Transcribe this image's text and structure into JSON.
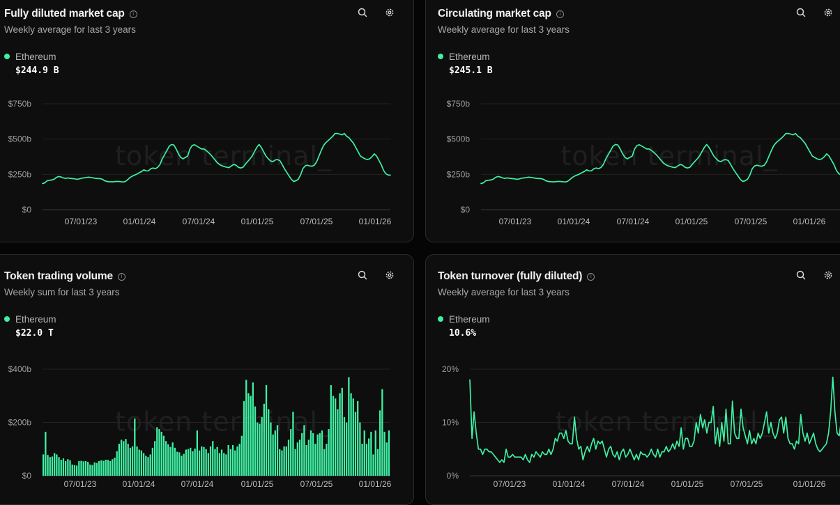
{
  "accent_color": "#3ff0a3",
  "icons": [
    "info-icon",
    "search-icon",
    "gear-icon"
  ],
  "panels": [
    {
      "title": "Fully diluted market cap",
      "subtitle": "Weekly average for last 3 years",
      "legend": "Ethereum",
      "value": "$244.9 B",
      "watermark": "token terminal_"
    },
    {
      "title": "Circulating market cap",
      "subtitle": "Weekly average for last 3 years",
      "legend": "Ethereum",
      "value": "$245.1 B",
      "watermark": "token terminal_"
    },
    {
      "title": "Token trading volume",
      "subtitle": "Weekly sum for last 3 years",
      "legend": "Ethereum",
      "value": "$22.0 T",
      "watermark": "token terminal_"
    },
    {
      "title": "Token turnover (fully diluted)",
      "subtitle": "Weekly average for last 3 years",
      "legend": "Ethereum",
      "value": "10.6%",
      "watermark": "token terminal_"
    }
  ],
  "chart_data": [
    {
      "type": "line",
      "title": "Fully diluted market cap",
      "series": [
        {
          "name": "Ethereum",
          "values": [
            185,
            190,
            205,
            208,
            210,
            215,
            228,
            235,
            232,
            225,
            222,
            225,
            222,
            220,
            218,
            215,
            218,
            223,
            225,
            228,
            230,
            228,
            225,
            222,
            220,
            220,
            215,
            205,
            200,
            198,
            197,
            198,
            200,
            200,
            198,
            196,
            200,
            213,
            228,
            238,
            245,
            252,
            262,
            270,
            282,
            275,
            275,
            290,
            295,
            290,
            300,
            320,
            360,
            390,
            420,
            450,
            462,
            458,
            430,
            395,
            370,
            360,
            370,
            380,
            430,
            455,
            460,
            450,
            440,
            430,
            430,
            420,
            405,
            390,
            370,
            350,
            330,
            318,
            310,
            305,
            300,
            298,
            310,
            320,
            315,
            300,
            295,
            300,
            320,
            340,
            358,
            380,
            410,
            440,
            462,
            440,
            410,
            380,
            360,
            345,
            340,
            352,
            355,
            348,
            320,
            290,
            265,
            240,
            215,
            200,
            205,
            215,
            245,
            290,
            310,
            315,
            310,
            308,
            315,
            340,
            380,
            420,
            455,
            475,
            490,
            505,
            520,
            540,
            540,
            535,
            530,
            540,
            520,
            510,
            490,
            470,
            440,
            410,
            380,
            370,
            360,
            355,
            360,
            375,
            395,
            380,
            350,
            320,
            280,
            255,
            245,
            244.9
          ]
        }
      ],
      "x_ticks": [
        "07/01/23",
        "01/01/24",
        "07/01/24",
        "01/01/25",
        "07/01/25",
        "01/01/26"
      ],
      "y_ticks": [
        "$0",
        "$250b",
        "$500b",
        "$750b"
      ],
      "ylim": [
        0,
        750
      ]
    },
    {
      "type": "line",
      "title": "Circulating market cap",
      "series": [
        {
          "name": "Ethereum",
          "values": [
            185,
            190,
            205,
            208,
            210,
            215,
            228,
            235,
            232,
            225,
            222,
            225,
            222,
            220,
            218,
            215,
            218,
            223,
            225,
            228,
            230,
            228,
            225,
            222,
            220,
            220,
            215,
            205,
            200,
            198,
            197,
            198,
            200,
            200,
            198,
            196,
            200,
            213,
            228,
            238,
            245,
            252,
            262,
            270,
            282,
            275,
            275,
            290,
            295,
            290,
            300,
            320,
            360,
            390,
            420,
            450,
            462,
            458,
            430,
            395,
            370,
            360,
            370,
            380,
            430,
            455,
            460,
            450,
            440,
            430,
            430,
            420,
            405,
            390,
            370,
            350,
            330,
            318,
            310,
            305,
            300,
            298,
            310,
            320,
            315,
            300,
            295,
            300,
            320,
            340,
            358,
            380,
            410,
            440,
            462,
            440,
            410,
            380,
            360,
            345,
            340,
            352,
            355,
            348,
            320,
            290,
            265,
            240,
            215,
            200,
            205,
            215,
            245,
            290,
            310,
            315,
            310,
            308,
            315,
            340,
            380,
            420,
            455,
            475,
            490,
            505,
            520,
            540,
            540,
            535,
            530,
            540,
            520,
            510,
            490,
            470,
            440,
            410,
            380,
            370,
            360,
            355,
            360,
            375,
            395,
            380,
            350,
            320,
            280,
            255,
            245,
            245.1
          ]
        }
      ],
      "x_ticks": [
        "07/01/23",
        "01/01/24",
        "07/01/24",
        "01/01/25",
        "07/01/25",
        "01/01/26"
      ],
      "y_ticks": [
        "$0",
        "$250b",
        "$500b",
        "$750b"
      ],
      "ylim": [
        0,
        750
      ]
    },
    {
      "type": "bar",
      "title": "Token trading volume",
      "series": [
        {
          "name": "Ethereum",
          "values": [
            80,
            165,
            78,
            70,
            72,
            85,
            80,
            70,
            60,
            65,
            55,
            62,
            58,
            42,
            40,
            38,
            55,
            56,
            54,
            55,
            52,
            42,
            40,
            50,
            48,
            55,
            58,
            56,
            60,
            60,
            55,
            62,
            68,
            92,
            120,
            135,
            130,
            138,
            120,
            105,
            110,
            215,
            110,
            98,
            95,
            85,
            75,
            70,
            80,
            105,
            130,
            182,
            175,
            165,
            150,
            130,
            118,
            108,
            125,
            105,
            90,
            88,
            75,
            82,
            98,
            100,
            105,
            92,
            102,
            170,
            95,
            110,
            108,
            100,
            85,
            110,
            130,
            100,
            108,
            85,
            98,
            85,
            80,
            115,
            100,
            115,
            95,
            110,
            120,
            150,
            280,
            360,
            310,
            300,
            350,
            260,
            200,
            195,
            220,
            270,
            340,
            250,
            200,
            155,
            170,
            190,
            100,
            95,
            110,
            110,
            135,
            175,
            240,
            100,
            125,
            135,
            160,
            190,
            115,
            135,
            170,
            160,
            120,
            155,
            160,
            170,
            100,
            120,
            175,
            340,
            300,
            290,
            250,
            310,
            330,
            220,
            200,
            370,
            310,
            290,
            240,
            280,
            200,
            120,
            170,
            120,
            140,
            165,
            80,
            170,
            100,
            245,
            325,
            165,
            125,
            170
          ]
        }
      ],
      "x_ticks": [
        "07/01/23",
        "01/01/24",
        "07/01/24",
        "01/01/25",
        "07/01/25",
        "01/01/26"
      ],
      "y_ticks": [
        "$0",
        "$200b",
        "$400b"
      ],
      "ylim": [
        0,
        400
      ]
    },
    {
      "type": "line",
      "title": "Token turnover (fully diluted)",
      "series": [
        {
          "name": "Ethereum",
          "values": [
            18,
            7,
            12,
            8,
            5,
            5,
            4,
            5,
            5,
            4.5,
            4.5,
            4,
            3.5,
            3,
            2.5,
            3,
            2.5,
            5,
            3.5,
            3.5,
            4,
            3.5,
            3.5,
            3.5,
            3.5,
            3,
            4,
            3,
            2.5,
            4,
            3.5,
            4.5,
            4,
            3.5,
            4.5,
            4,
            4,
            5,
            4,
            5,
            7,
            6.5,
            8,
            8,
            7,
            8.5,
            6.5,
            6,
            6,
            11,
            7,
            5,
            5.5,
            3,
            4.5,
            5.5,
            4.5,
            6,
            7,
            5,
            6.5,
            6,
            6.5,
            5,
            3.5,
            5,
            5.5,
            4,
            3.5,
            4.5,
            3,
            4.5,
            5,
            3.5,
            4,
            5,
            4,
            3,
            4,
            3,
            4.5,
            4,
            4,
            3.5,
            4,
            5,
            4,
            3.5,
            5,
            3.5,
            4.5,
            4.5,
            5.5,
            4.5,
            5,
            6,
            5,
            6.5,
            5.5,
            9,
            5,
            7,
            7,
            5.5,
            5.5,
            6.5,
            10,
            8,
            11.5,
            9,
            10.5,
            8,
            10,
            10,
            13,
            6,
            9,
            5.5,
            10,
            6.5,
            12.5,
            6,
            6,
            14,
            8,
            7,
            7,
            12.5,
            9,
            7.5,
            6,
            8.5,
            6,
            7,
            6,
            8,
            7,
            8,
            10,
            12,
            8,
            10,
            8,
            7,
            8,
            10.5,
            11,
            8,
            11,
            7,
            6,
            6,
            5,
            6.5,
            6,
            11.5,
            8,
            6.5,
            8,
            6,
            7,
            8,
            6,
            5,
            4.5,
            5,
            5.5,
            6,
            8,
            12,
            18.5,
            12,
            8,
            7.5,
            10.5,
            10.6
          ]
        }
      ],
      "x_ticks": [
        "07/01/23",
        "01/01/24",
        "07/01/24",
        "01/01/25",
        "07/01/25",
        "01/01/26"
      ],
      "y_ticks": [
        "0%",
        "10%",
        "20%"
      ],
      "ylim": [
        0,
        20
      ]
    }
  ]
}
